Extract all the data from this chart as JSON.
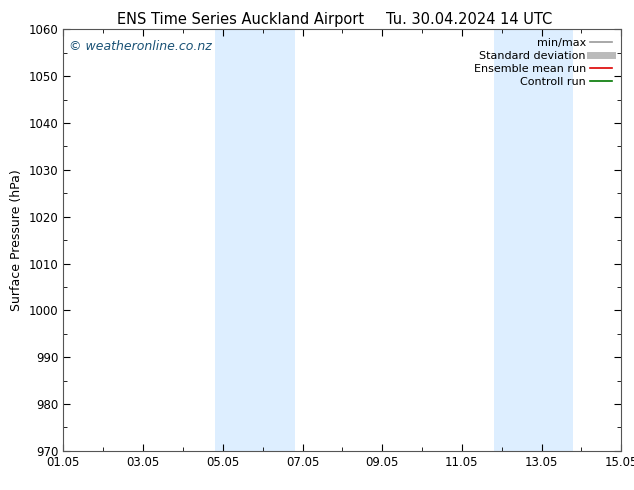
{
  "title_left": "ENS Time Series Auckland Airport",
  "title_right": "Tu. 30.04.2024 14 UTC",
  "ylabel": "Surface Pressure (hPa)",
  "ylim": [
    970,
    1060
  ],
  "yticks": [
    970,
    980,
    990,
    1000,
    1010,
    1020,
    1030,
    1040,
    1050,
    1060
  ],
  "xlim_start": 0,
  "xlim_end": 14,
  "xtick_positions": [
    0,
    2,
    4,
    6,
    8,
    10,
    12,
    14
  ],
  "xtick_labels": [
    "01.05",
    "03.05",
    "05.05",
    "07.05",
    "09.05",
    "11.05",
    "13.05",
    "15.05"
  ],
  "shade_bands": [
    {
      "x_start": 3.8,
      "x_end": 5.8
    },
    {
      "x_start": 10.8,
      "x_end": 12.8
    }
  ],
  "shade_color": "#ddeeff",
  "background_color": "#ffffff",
  "plot_bg_color": "#ffffff",
  "watermark": "© weatheronline.co.nz",
  "watermark_color": "#1a5276",
  "legend_items": [
    {
      "label": "min/max",
      "color": "#999999",
      "lw": 1.2
    },
    {
      "label": "Standard deviation",
      "color": "#bbbbbb",
      "lw": 5
    },
    {
      "label": "Ensemble mean run",
      "color": "#dd0000",
      "lw": 1.2
    },
    {
      "label": "Controll run",
      "color": "#007700",
      "lw": 1.2
    }
  ],
  "title_fontsize": 10.5,
  "ylabel_fontsize": 9,
  "tick_fontsize": 8.5,
  "watermark_fontsize": 9,
  "legend_fontsize": 8
}
